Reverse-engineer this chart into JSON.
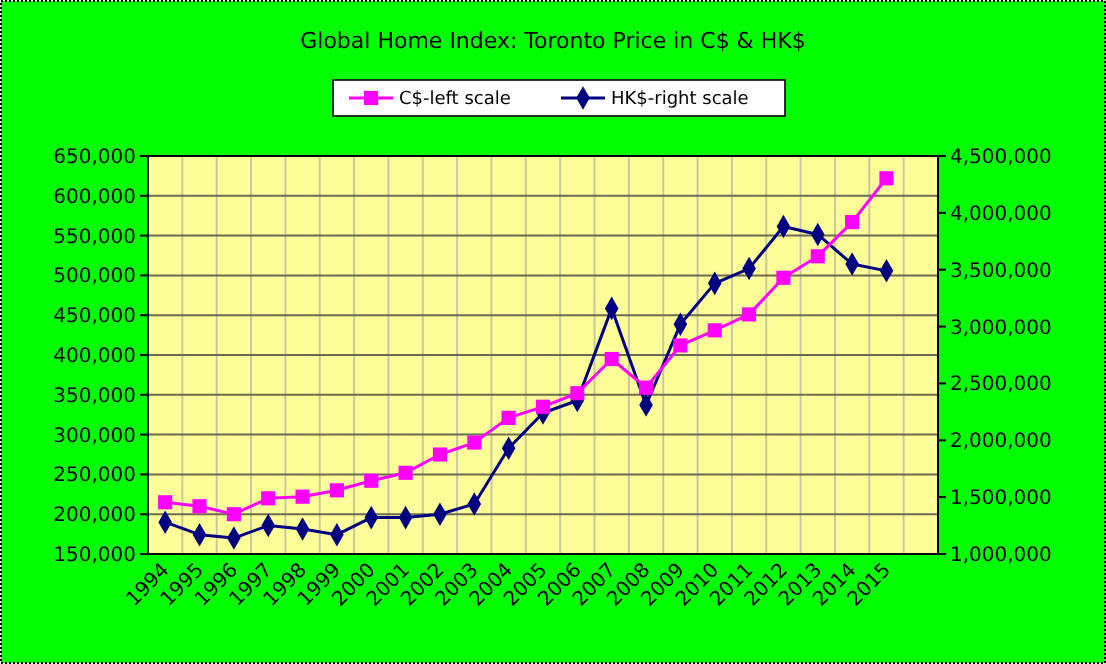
{
  "chart_data": {
    "type": "line",
    "title": "Global Home Index: Toronto Price in C$ & HK$",
    "categories": [
      "1994",
      "1995",
      "1996",
      "1997",
      "1998",
      "1999",
      "2000",
      "2001",
      "2002",
      "2003",
      "2004",
      "2005",
      "2006",
      "2007",
      "2008",
      "2009",
      "2010",
      "2011",
      "2012",
      "2013",
      "2014",
      "2015",
      null
    ],
    "series": [
      {
        "name": "C$-left scale",
        "color": "#ff00ff",
        "marker": "square",
        "values": [
          215000,
          210000,
          200000,
          220000,
          222000,
          230000,
          242000,
          252000,
          275000,
          290000,
          321000,
          335000,
          352000,
          395000,
          359000,
          412000,
          431000,
          451000,
          497000,
          524000,
          567000,
          622000,
          null
        ]
      },
      {
        "name": "HK$-right scale",
        "color": "#000080",
        "marker": "diamond",
        "axis": "y2",
        "values": [
          1280000,
          1170000,
          1140000,
          1250000,
          1220000,
          1170000,
          1320000,
          1320000,
          1350000,
          1440000,
          1930000,
          2240000,
          2350000,
          3160000,
          2310000,
          3020000,
          3380000,
          3510000,
          3880000,
          3810000,
          3550000,
          3490000,
          null
        ]
      }
    ],
    "ylim": [
      150000,
      650000
    ],
    "yticks": [
      {
        "value": 150000,
        "label": "150,000"
      },
      {
        "value": 200000,
        "label": "200,000"
      },
      {
        "value": 250000,
        "label": "250,000"
      },
      {
        "value": 300000,
        "label": "300,000"
      },
      {
        "value": 350000,
        "label": "350,000"
      },
      {
        "value": 400000,
        "label": "400,000"
      },
      {
        "value": 450000,
        "label": "450,000"
      },
      {
        "value": 500000,
        "label": "500,000"
      },
      {
        "value": 550000,
        "label": "550,000"
      },
      {
        "value": 600000,
        "label": "600,000"
      },
      {
        "value": 650000,
        "label": "650,000"
      }
    ],
    "y2lim": [
      1000000,
      4500000
    ],
    "y2ticks": [
      {
        "value": 1000000,
        "label": "1,000,000"
      },
      {
        "value": 1500000,
        "label": "1,500,000"
      },
      {
        "value": 2000000,
        "label": "2,000,000"
      },
      {
        "value": 2500000,
        "label": "2,500,000"
      },
      {
        "value": 3000000,
        "label": "3,000,000"
      },
      {
        "value": 3500000,
        "label": "3,500,000"
      },
      {
        "value": 4000000,
        "label": "4,000,000"
      },
      {
        "value": 4500000,
        "label": "4,500,000"
      }
    ],
    "grid": true,
    "legend": "top"
  }
}
